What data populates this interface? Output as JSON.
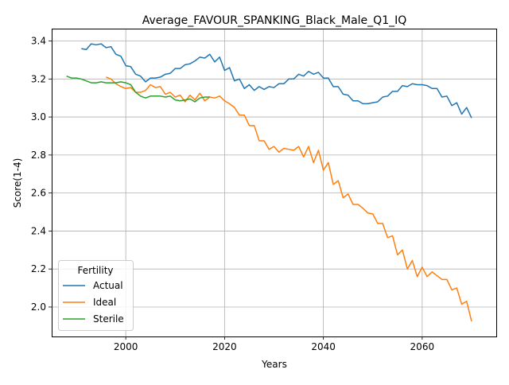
{
  "chart_data": {
    "type": "line",
    "title": "Average_FAVOUR_SPANKING_Black_Male_Q1_IQ",
    "xlabel": "Years",
    "ylabel": "Score(1-4)",
    "xlim": [
      1985,
      2075
    ],
    "ylim": [
      1.845,
      3.465
    ],
    "xticks": [
      2000,
      2020,
      2040,
      2060
    ],
    "yticks": [
      2.0,
      2.2,
      2.4,
      2.6,
      2.8,
      3.0,
      3.2,
      3.4
    ],
    "grid": true,
    "legend": {
      "title": "Fertility",
      "position": "lower-left"
    },
    "series": [
      {
        "name": "Actual",
        "color": "#1f77b4",
        "x": [
          1991,
          1992,
          1993,
          1994,
          1995,
          1996,
          1997,
          1998,
          1999,
          2000,
          2001,
          2002,
          2003,
          2004,
          2005,
          2006,
          2007,
          2008,
          2009,
          2010,
          2011,
          2012,
          2013,
          2014,
          2015,
          2016,
          2017,
          2018,
          2019,
          2020,
          2021,
          2022,
          2023,
          2024,
          2025,
          2026,
          2027,
          2028,
          2029,
          2030,
          2031,
          2032,
          2033,
          2034,
          2035,
          2036,
          2037,
          2038,
          2039,
          2040,
          2041,
          2042,
          2043,
          2044,
          2045,
          2046,
          2047,
          2048,
          2049,
          2050,
          2051,
          2052,
          2053,
          2054,
          2055,
          2056,
          2057,
          2058,
          2059,
          2060,
          2061,
          2062,
          2063,
          2064,
          2065,
          2066,
          2067,
          2068,
          2069,
          2070
        ],
        "y": [
          3.36,
          3.355,
          3.385,
          3.38,
          3.385,
          3.365,
          3.37,
          3.33,
          3.32,
          3.27,
          3.265,
          3.225,
          3.215,
          3.185,
          3.205,
          3.205,
          3.21,
          3.225,
          3.23,
          3.255,
          3.255,
          3.275,
          3.28,
          3.295,
          3.315,
          3.31,
          3.33,
          3.29,
          3.315,
          3.245,
          3.26,
          3.19,
          3.2,
          3.15,
          3.17,
          3.14,
          3.16,
          3.145,
          3.16,
          3.155,
          3.175,
          3.175,
          3.2,
          3.2,
          3.225,
          3.215,
          3.24,
          3.225,
          3.235,
          3.205,
          3.205,
          3.16,
          3.16,
          3.12,
          3.115,
          3.085,
          3.085,
          3.07,
          3.07,
          3.075,
          3.08,
          3.105,
          3.11,
          3.135,
          3.135,
          3.165,
          3.16,
          3.175,
          3.17,
          3.17,
          3.165,
          3.15,
          3.15,
          3.105,
          3.11,
          3.06,
          3.075,
          3.015,
          3.05,
          2.995
        ]
      },
      {
        "name": "Ideal",
        "color": "#ff7f0e",
        "x": [
          1996,
          1997,
          1998,
          1999,
          2000,
          2001,
          2002,
          2003,
          2004,
          2005,
          2006,
          2007,
          2008,
          2009,
          2010,
          2011,
          2012,
          2013,
          2014,
          2015,
          2016,
          2017,
          2018,
          2019,
          2020,
          2021,
          2022,
          2023,
          2024,
          2025,
          2026,
          2027,
          2028,
          2029,
          2030,
          2031,
          2032,
          2033,
          2034,
          2035,
          2036,
          2037,
          2038,
          2039,
          2040,
          2041,
          2042,
          2043,
          2044,
          2045,
          2046,
          2047,
          2048,
          2049,
          2050,
          2051,
          2052,
          2053,
          2054,
          2055,
          2056,
          2057,
          2058,
          2059,
          2060,
          2061,
          2062,
          2063,
          2064,
          2065,
          2066,
          2067,
          2068,
          2069,
          2070
        ],
        "y": [
          3.21,
          3.2,
          3.175,
          3.16,
          3.15,
          3.155,
          3.13,
          3.13,
          3.14,
          3.17,
          3.155,
          3.16,
          3.12,
          3.13,
          3.105,
          3.115,
          3.08,
          3.115,
          3.09,
          3.125,
          3.085,
          3.105,
          3.1,
          3.11,
          3.085,
          3.07,
          3.05,
          3.01,
          3.01,
          2.955,
          2.955,
          2.875,
          2.875,
          2.83,
          2.845,
          2.815,
          2.835,
          2.83,
          2.825,
          2.845,
          2.79,
          2.845,
          2.76,
          2.825,
          2.72,
          2.76,
          2.645,
          2.665,
          2.575,
          2.595,
          2.54,
          2.54,
          2.52,
          2.495,
          2.49,
          2.44,
          2.44,
          2.365,
          2.375,
          2.275,
          2.3,
          2.2,
          2.245,
          2.16,
          2.21,
          2.16,
          2.185,
          2.165,
          2.145,
          2.145,
          2.09,
          2.1,
          2.015,
          2.03,
          1.925
        ]
      },
      {
        "name": "Sterile",
        "color": "#2ca02c",
        "x": [
          1988,
          1989,
          1990,
          1991,
          1992,
          1993,
          1994,
          1995,
          1996,
          1997,
          1998,
          1999,
          2000,
          2001,
          2002,
          2003,
          2004,
          2005,
          2006,
          2007,
          2008,
          2009,
          2010,
          2011,
          2012,
          2013,
          2014,
          2015,
          2016,
          2017
        ],
        "y": [
          3.215,
          3.205,
          3.205,
          3.2,
          3.19,
          3.18,
          3.18,
          3.185,
          3.18,
          3.18,
          3.18,
          3.185,
          3.18,
          3.17,
          3.13,
          3.11,
          3.1,
          3.11,
          3.11,
          3.11,
          3.105,
          3.11,
          3.09,
          3.085,
          3.09,
          3.095,
          3.08,
          3.1,
          3.105,
          3.105
        ]
      }
    ]
  }
}
